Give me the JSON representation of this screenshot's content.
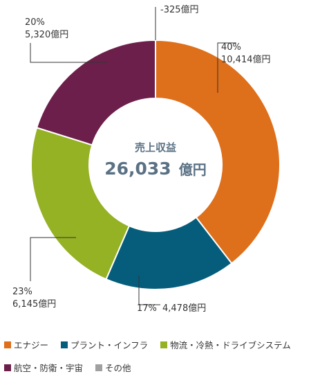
{
  "chart_data": {
    "type": "pie",
    "donut": true,
    "center_title": "売上収益",
    "center_value": "26,033",
    "center_unit": "億円",
    "slices": [
      {
        "name": "エナジー",
        "percent_label": "40%",
        "amount_label": "10,414億円",
        "value": 10414,
        "color": "#de6f1b"
      },
      {
        "name": "プラント・インフラ",
        "percent_label": "17%",
        "amount_label": "4,478億円",
        "value": 4478,
        "color": "#055d7b"
      },
      {
        "name": "物流・冷熱・ドライブシステム",
        "percent_label": "23%",
        "amount_label": "6,145億円",
        "value": 6145,
        "color": "#95b124"
      },
      {
        "name": "航空・防衛・宇宙",
        "percent_label": "20%",
        "amount_label": "5,320億円",
        "value": 5320,
        "color": "#6d1f4b"
      },
      {
        "name": "その他",
        "percent_label": "",
        "amount_label": "-325億円",
        "value": -325,
        "color": "#a0a0a0"
      }
    ],
    "legend": [
      {
        "label": "エナジー",
        "color": "#de6f1b"
      },
      {
        "label": "プラント・インフラ",
        "color": "#055d7b"
      },
      {
        "label": "物流・冷熱・ドライブシステム",
        "color": "#95b124"
      },
      {
        "label": "航空・防衛・宇宙",
        "color": "#6d1f4b"
      },
      {
        "label": "その他",
        "color": "#a0a0a0"
      }
    ],
    "legend_position": "bottom"
  }
}
